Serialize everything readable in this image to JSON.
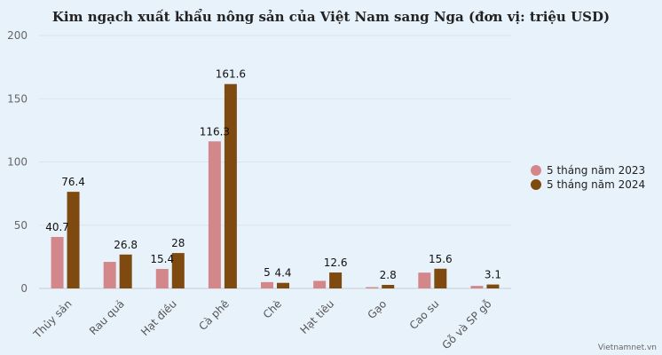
{
  "chart_data": {
    "type": "bar",
    "title": "Kim ngạch xuất khẩu nông sản của Việt Nam sang Nga (đơn vị: triệu USD)",
    "categories": [
      "Thủy sản",
      "Rau quả",
      "Hạt điều",
      "Cà phê",
      "Chè",
      "Hạt tiêu",
      "Gạo",
      "Cao su",
      "Gỗ và SP gỗ"
    ],
    "series": [
      {
        "name": "5 tháng năm 2023",
        "color": "#d4878a",
        "values": [
          40.7,
          21,
          15.4,
          116.3,
          5,
          6,
          1,
          12.5,
          2
        ],
        "labels": [
          "40.7",
          "",
          "15.4",
          "116.3",
          "5",
          "",
          "",
          "",
          ""
        ]
      },
      {
        "name": "5 tháng năm 2024",
        "color": "#7f4a10",
        "values": [
          76.4,
          26.8,
          28,
          161.6,
          4.4,
          12.6,
          2.8,
          15.6,
          3.1
        ],
        "labels": [
          "76.4",
          "26.8",
          "28",
          "161.6",
          "4.4",
          "12.6",
          "2.8",
          "15.6",
          "3.1"
        ]
      }
    ],
    "ylim": [
      0,
      200
    ],
    "yticks": [
      0,
      50,
      100,
      150,
      200
    ],
    "grid": true,
    "legend_position": "right",
    "xlabel": "",
    "ylabel": ""
  },
  "source": "Vietnamnet.vn"
}
